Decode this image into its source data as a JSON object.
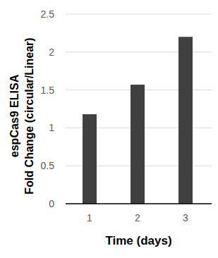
{
  "chart_data": {
    "type": "bar",
    "x_label": "Time (days)",
    "y_label": "espCas9 ELISA\nFold Change (circular/Linear)",
    "categories": [
      "1",
      "2",
      "3"
    ],
    "values": [
      1.18,
      1.57,
      2.2
    ],
    "color": "#404040",
    "ylim": [
      0,
      2.5
    ],
    "yticks": [
      0,
      0.5,
      1,
      1.5,
      2,
      2.5
    ],
    "grid": true
  }
}
